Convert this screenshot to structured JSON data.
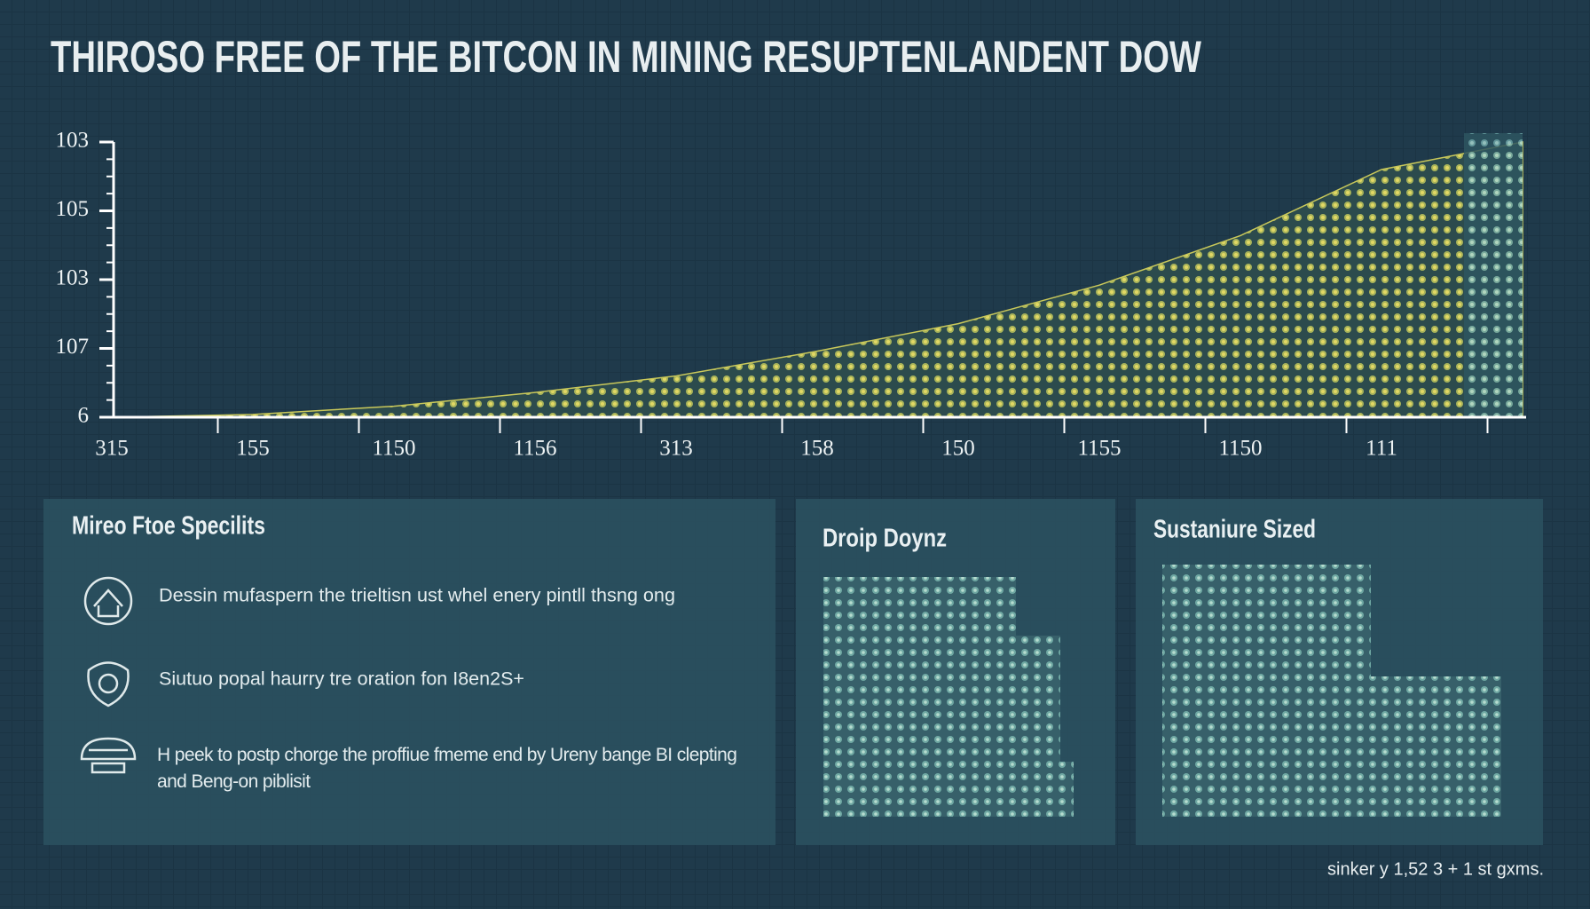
{
  "chart_data": {
    "type": "area",
    "title": "THIROSO FREE OF THE BITCON IN MINING RESUPTENLANDENT DOW",
    "categories": [
      "315",
      "155",
      "1150",
      "1156",
      "313",
      "158",
      "150",
      "1155",
      "1150",
      "111",
      null
    ],
    "values": [
      0,
      1,
      4,
      9,
      15,
      24,
      34,
      48,
      66,
      90,
      100
    ],
    "ylim": [
      0,
      100
    ],
    "y_labels": [
      "103",
      "105",
      "103",
      "107",
      "6"
    ],
    "color": "#c9c85a"
  },
  "panels": [
    {
      "title": "Mireo Ftoe Specilits",
      "items": [
        "Dessin mufaspern the trieltisn ust whel enery pintll thsng ong",
        "Siutuo popal haurry tre oration fon I8en2S+",
        "H peek to postp chorge the proffiue fmeme end by Ureny bange BI clepting and Beng-on piblisit"
      ]
    },
    {
      "title": "Droip Doynz"
    },
    {
      "title": "Sustaniure Sized"
    }
  ],
  "footer": "sinker y 1,52 3 + 1 st gxms."
}
